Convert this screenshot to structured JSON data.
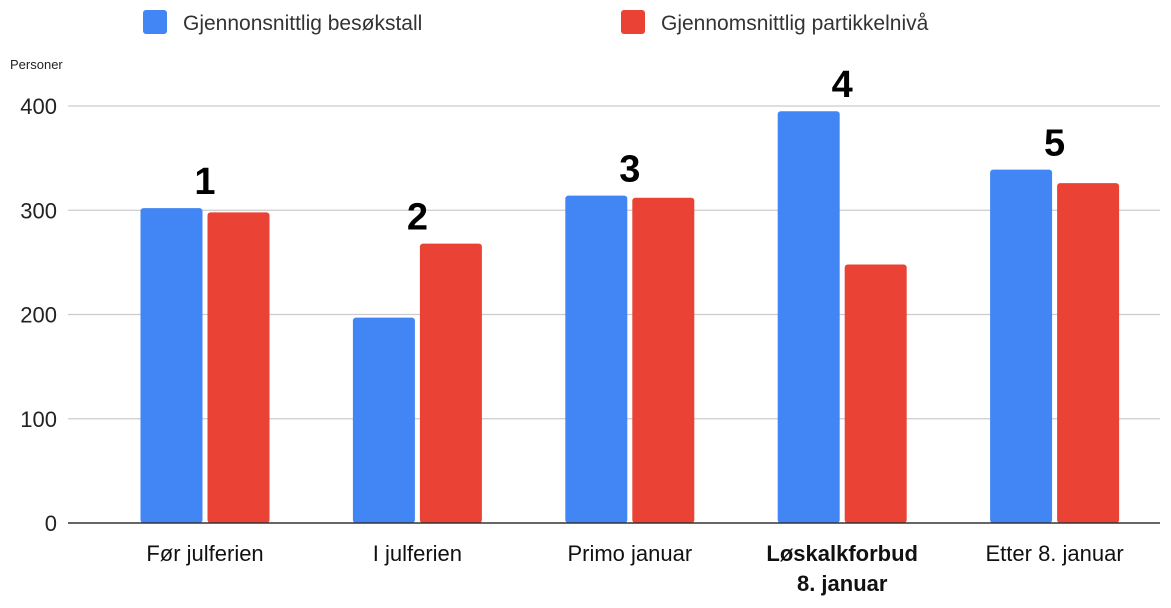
{
  "chart_data": {
    "type": "bar",
    "ylabel": "Personer",
    "ylim": [
      0,
      400
    ],
    "yticks": [
      0,
      100,
      200,
      300,
      400
    ],
    "grid": true,
    "legend_position": "top",
    "categories": [
      {
        "lines": [
          "Før julferien"
        ],
        "bold": false,
        "annotation": "1"
      },
      {
        "lines": [
          "I julferien"
        ],
        "bold": false,
        "annotation": "2"
      },
      {
        "lines": [
          "Primo januar"
        ],
        "bold": false,
        "annotation": "3"
      },
      {
        "lines": [
          "Løskalkforbud",
          "8. januar"
        ],
        "bold": true,
        "annotation": "4"
      },
      {
        "lines": [
          "Etter 8. januar"
        ],
        "bold": false,
        "annotation": "5"
      }
    ],
    "series": [
      {
        "name": "Gjennonsnittlig besøkstall",
        "color": "#4285F4",
        "values": [
          302,
          197,
          314,
          395,
          339
        ]
      },
      {
        "name": "Gjennomsnittlig partikkelnivå",
        "color": "#EA4335",
        "values": [
          298,
          268,
          312,
          248,
          326
        ]
      }
    ]
  }
}
